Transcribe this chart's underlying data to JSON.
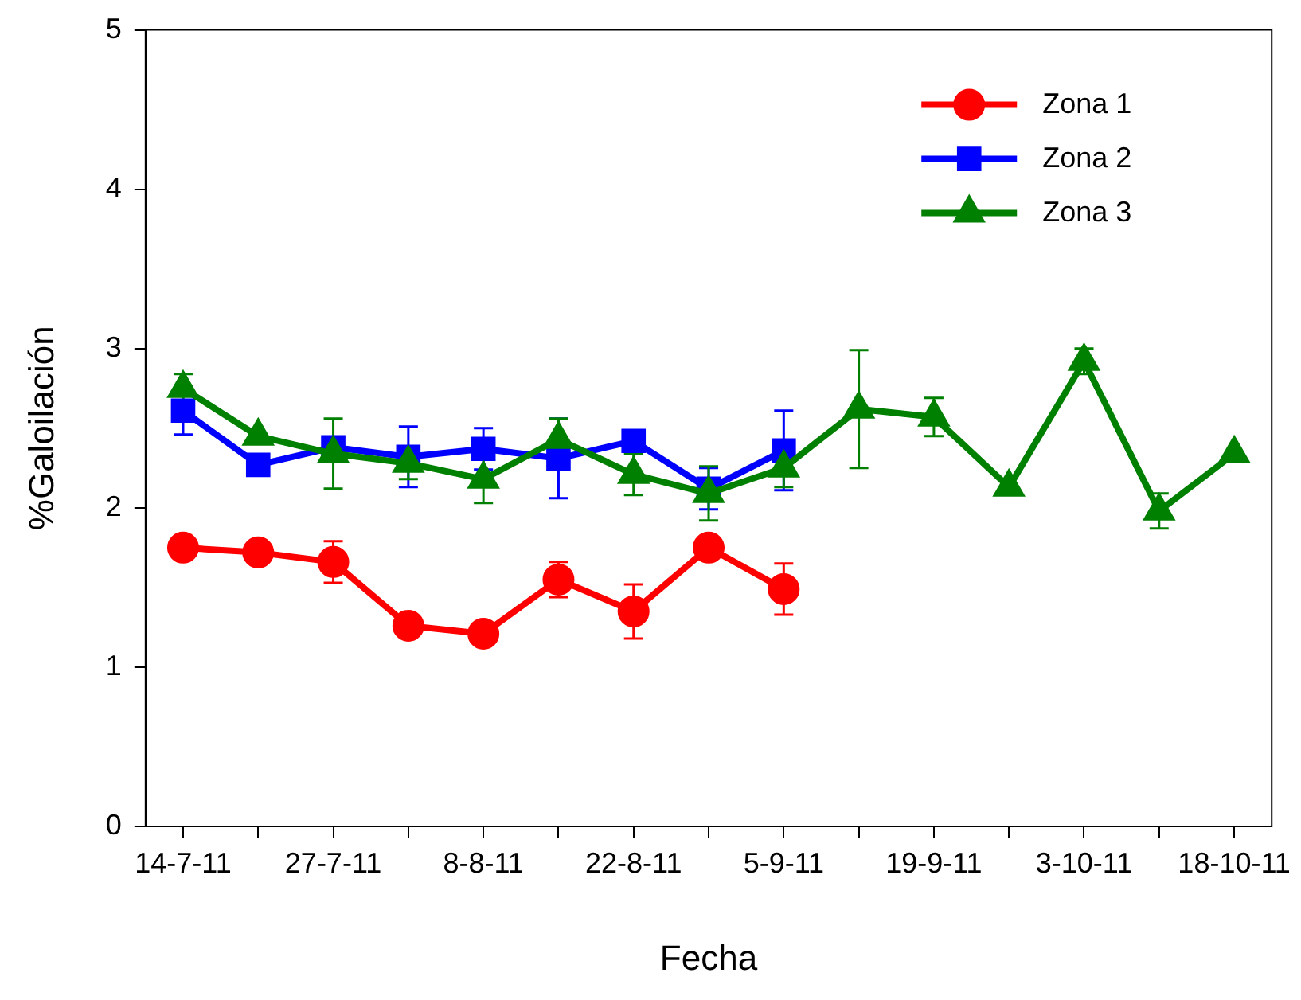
{
  "chart_data": {
    "type": "line",
    "xlabel": "Fecha",
    "ylabel": "%Galoilación",
    "categories": [
      "14-7-11",
      null,
      "27-7-11",
      null,
      "8-8-11",
      null,
      "22-8-11",
      null,
      "5-9-11",
      null,
      "19-9-11",
      null,
      "3-10-11",
      null,
      "18-10-11"
    ],
    "ylim": [
      0,
      5
    ],
    "yticks": [
      0,
      1,
      2,
      3,
      4,
      5
    ],
    "grid": false,
    "legend": "top right",
    "line_style": "solid",
    "series": [
      {
        "name": "Zona 1",
        "color": "#ff0000",
        "marker": "circle",
        "values": [
          1.75,
          1.72,
          1.66,
          1.26,
          1.21,
          1.55,
          1.35,
          1.75,
          1.49,
          null,
          null,
          null,
          null,
          null,
          null
        ],
        "errors": [
          null,
          null,
          0.13,
          null,
          0.07,
          0.11,
          0.17,
          null,
          0.16,
          null,
          null,
          null,
          null,
          null,
          null
        ]
      },
      {
        "name": "Zona 2",
        "color": "#0000ff",
        "marker": "square",
        "values": [
          2.61,
          2.27,
          2.38,
          2.32,
          2.37,
          2.31,
          2.42,
          2.12,
          2.36,
          null,
          null,
          null,
          null,
          null,
          null
        ],
        "errors": [
          0.15,
          null,
          null,
          0.19,
          0.13,
          0.25,
          null,
          0.13,
          0.25,
          null,
          null,
          null,
          null,
          null,
          null
        ]
      },
      {
        "name": "Zona 3",
        "color": "#008000",
        "marker": "triangle",
        "values": [
          2.75,
          2.45,
          2.34,
          2.28,
          2.18,
          2.43,
          2.21,
          2.09,
          2.25,
          2.62,
          2.57,
          2.13,
          2.92,
          1.98,
          2.34
        ],
        "errors": [
          0.09,
          null,
          0.22,
          0.1,
          0.15,
          0.13,
          0.13,
          0.17,
          0.12,
          0.37,
          0.12,
          null,
          0.08,
          0.11,
          null
        ]
      }
    ]
  }
}
